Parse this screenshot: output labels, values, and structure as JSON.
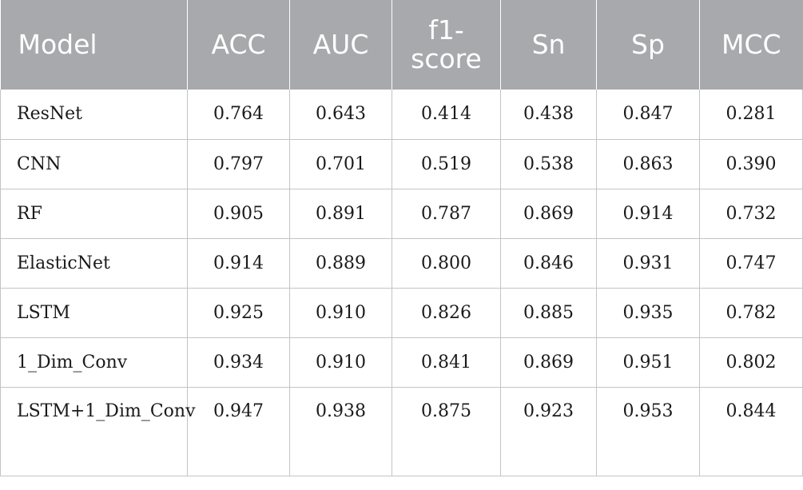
{
  "table": {
    "headers": [
      "Model",
      "ACC",
      "AUC",
      "f1-score",
      "Sn",
      "Sp",
      "MCC"
    ],
    "rows": [
      [
        "ResNet",
        "0.764",
        "0.643",
        "0.414",
        "0.438",
        "0.847",
        "0.281"
      ],
      [
        "CNN",
        "0.797",
        "0.701",
        "0.519",
        "0.538",
        "0.863",
        "0.390"
      ],
      [
        "RF",
        "0.905",
        "0.891",
        "0.787",
        "0.869",
        "0.914",
        "0.732"
      ],
      [
        "ElasticNet",
        "0.914",
        "0.889",
        "0.800",
        "0.846",
        "0.931",
        "0.747"
      ],
      [
        "LSTM",
        "0.925",
        "0.910",
        "0.826",
        "0.885",
        "0.935",
        "0.782"
      ],
      [
        "1_Dim_Conv",
        "0.934",
        "0.910",
        "0.841",
        "0.869",
        "0.951",
        "0.802"
      ],
      [
        "LSTM+1_Dim_Conv",
        "0.947",
        "0.938",
        "0.875",
        "0.923",
        "0.953",
        "0.844"
      ]
    ]
  },
  "colors": {
    "header_background": "#a7a9ac",
    "header_text": "#ffffff",
    "grid_line": "#c4c4c4"
  }
}
